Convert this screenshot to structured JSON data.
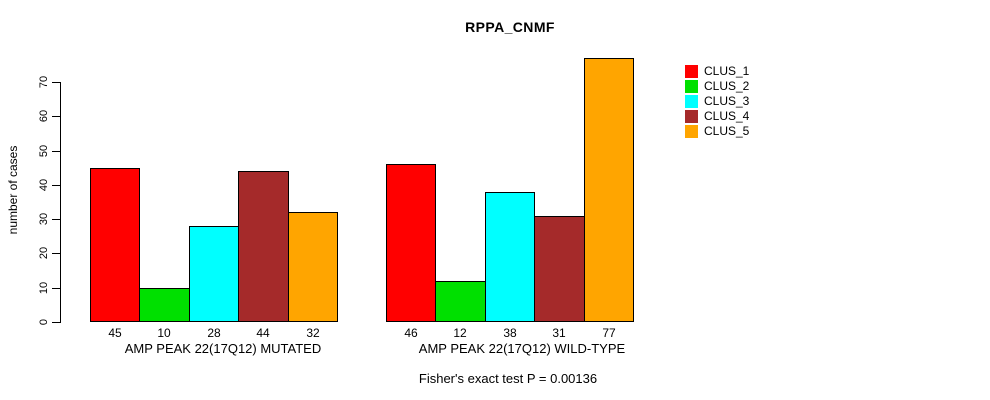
{
  "chart_data": {
    "type": "bar",
    "title": "RPPA_CNMF",
    "ylabel": "number of cases",
    "ylim": [
      0,
      70
    ],
    "yticks": [
      0,
      10,
      20,
      30,
      40,
      50,
      60,
      70
    ],
    "grid": false,
    "legend_position": "right-outside",
    "bar_value_labels": true,
    "categories": [
      "AMP PEAK 22(17Q12) MUTATED",
      "AMP PEAK 22(17Q12) WILD-TYPE"
    ],
    "series": [
      {
        "name": "CLUS_1",
        "color": "#ff0000",
        "values": [
          45,
          46
        ]
      },
      {
        "name": "CLUS_2",
        "color": "#00e000",
        "values": [
          10,
          12
        ]
      },
      {
        "name": "CLUS_3",
        "color": "#00ffff",
        "values": [
          28,
          38
        ]
      },
      {
        "name": "CLUS_4",
        "color": "#a52a2a",
        "values": [
          44,
          31
        ]
      },
      {
        "name": "CLUS_5",
        "color": "#ffa500",
        "values": [
          32,
          77
        ]
      }
    ],
    "annotation": "Fisher's exact test P = 0.00136"
  }
}
